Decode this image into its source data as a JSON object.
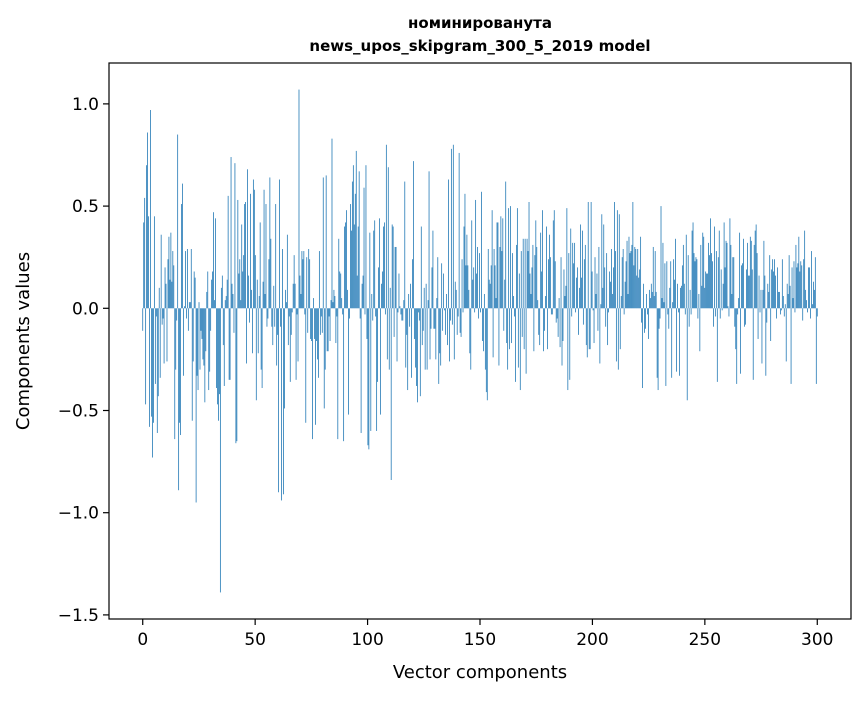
{
  "chart_data": {
    "type": "bar",
    "title_lines": [
      "номинированута",
      "news_upos_skipgram_300_5_2019 model"
    ],
    "xlabel": "Vector components",
    "ylabel": "Components values",
    "xlim": [
      -15,
      315
    ],
    "ylim": [
      -1.52,
      1.2
    ],
    "x_ticks": [
      0,
      50,
      100,
      150,
      200,
      250,
      300
    ],
    "x_tick_labels": [
      "0",
      "50",
      "100",
      "150",
      "200",
      "250",
      "300"
    ],
    "y_ticks": [
      -1.5,
      -1.0,
      -0.5,
      0.0,
      0.5,
      1.0
    ],
    "y_tick_labels": [
      "−1.5",
      "−1.0",
      "−0.5",
      "0.0",
      "0.5",
      "1.0"
    ],
    "bar_color": "#1f77b4",
    "bar_width": 0.8,
    "grid": false,
    "values": [
      -0.11,
      0.42,
      0.54,
      -0.47,
      0.7,
      0.86,
      0.45,
      -0.58,
      0.97,
      -0.53,
      -0.73,
      -0.56,
      0.45,
      -0.37,
      -0.04,
      -0.61,
      -0.43,
      0.1,
      -0.34,
      0.36,
      -0.08,
      -0.05,
      -0.27,
      0.2,
      0.12,
      -0.26,
      0.24,
      0.35,
      0.14,
      0.37,
      0.13,
      0.28,
      0.21,
      -0.64,
      -0.3,
      -0.06,
      0.85,
      -0.89,
      -0.56,
      -0.62,
      0.51,
      0.61,
      -0.33,
      0.01,
      0.28,
      -0.05,
      0.29,
      -0.11,
      0.03,
      0.03,
      0.29,
      -0.55,
      -0.26,
      0.18,
      0.15,
      -0.95,
      -0.33,
      -0.4,
      0.03,
      -0.3,
      -0.11,
      -0.15,
      -0.25,
      -0.28,
      -0.46,
      -0.21,
      0.08,
      0.18,
      -0.4,
      -0.31,
      -0.11,
      0.14,
      0.18,
      0.47,
      0.04,
      0.44,
      -0.39,
      -0.47,
      -0.55,
      -0.42,
      -1.39,
      0.1,
      0.16,
      -0.18,
      -0.38,
      0.04,
      0.06,
      0.14,
      0.55,
      -0.35,
      -0.35,
      0.74,
      0.12,
      0.07,
      -0.12,
      0.71,
      -0.66,
      -0.65,
      0.53,
      0.17,
      0.24,
      0.04,
      0.41,
      0.18,
      0.26,
      0.51,
      0.52,
      -0.27,
      0.68,
      0.16,
      -0.07,
      0.56,
      0.09,
      -0.22,
      0.63,
      0.58,
      0.26,
      -0.45,
      0.14,
      -0.22,
      0.06,
      0.42,
      -0.3,
      -0.39,
      0.13,
      0.58,
      0.07,
      0.51,
      -0.09,
      -0.05,
      0.24,
      0.64,
      0.34,
      -0.09,
      -0.18,
      0.11,
      -0.09,
      0.51,
      -0.28,
      -0.13,
      -0.9,
      0.63,
      -0.09,
      -0.94,
      0.29,
      -0.91,
      -0.49,
      0.09,
      0.03,
      0.36,
      -0.18,
      -0.04,
      -0.36,
      -0.13,
      -0.02,
      0.12,
      0.26,
      0.12,
      -0.35,
      -0.03,
      -0.26,
      1.07,
      0.16,
      0.07,
      0.28,
      0.24,
      0.28,
      -0.03,
      -0.56,
      0.25,
      -0.12,
      0.29,
      0.24,
      -0.15,
      -0.16,
      -0.64,
      0.05,
      -0.15,
      -0.57,
      -0.16,
      -0.25,
      -0.34,
      0.28,
      -0.13,
      -0.04,
      -0.12,
      0.64,
      -0.49,
      -0.3,
      0.65,
      -0.21,
      -0.21,
      -0.04,
      -0.16,
      0.04,
      0.83,
      0.03,
      0.09,
      0.06,
      -0.17,
      -0.04,
      -0.64,
      0.34,
      0.18,
      0.17,
      0.05,
      -0.03,
      -0.65,
      0.4,
      0.42,
      0.48,
      0.09,
      -0.52,
      -0.05,
      0.51,
      0.38,
      0.62,
      0.7,
      0.41,
      0.56,
      0.77,
      0.16,
      0.4,
      0.67,
      -0.05,
      -0.61,
      0.12,
      0.16,
      0.59,
      -0.03,
      0.7,
      -0.15,
      -0.67,
      -0.69,
      0.37,
      -0.6,
      0.07,
      -0.06,
      0.38,
      0.43,
      -0.04,
      -0.6,
      -0.36,
      0.2,
      0.44,
      -0.52,
      0.12,
      0.18,
      0.4,
      0.42,
      -0.03,
      0.8,
      -0.25,
      0.69,
      -0.3,
      0.1,
      -0.84,
      0.41,
      0.4,
      -0.14,
      0.3,
      0.3,
      -0.26,
      -0.02,
      0.17,
      0.01,
      -0.03,
      -0.06,
      -0.06,
      0.04,
      0.62,
      -0.29,
      -0.13,
      -0.4,
      0.07,
      -0.09,
      0.12,
      -0.34,
      0.24,
      0.72,
      -0.15,
      -0.29,
      -0.38,
      -0.46,
      -0.02,
      -0.06,
      -0.43,
      0.4,
      -0.18,
      -0.11,
      0.1,
      -0.3,
      0.12,
      -0.3,
      0.04,
      0.67,
      -0.25,
      -0.1,
      0.2,
      0.38,
      -0.1,
      -0.1,
      -0.25,
      0.05,
      0.25,
      -0.37,
      -0.22,
      -0.28,
      0.22,
      -0.11,
      0.17,
      -0.01,
      -0.13,
      0.07,
      -0.18,
      0.63,
      -0.26,
      -0.06,
      0.78,
      -0.08,
      0.8,
      -0.25,
      0.13,
      0.09,
      -0.13,
      -0.04,
      0.76,
      -0.12,
      -0.14,
      0.24,
      -0.02,
      0.4,
      0.56,
      0.21,
      0.36,
      0.21,
      0.09,
      -0.22,
      -0.3,
      0.43,
      0.14,
      0.2,
      -0.02,
      0.53,
      0.17,
      0.3,
      -0.05,
      0.27,
      -0.02,
      0.57,
      -0.16,
      -0.21,
      0.07,
      -0.3,
      -0.41,
      -0.45,
      0.29,
      0.14,
      0.12,
      0.21,
      0.48,
      -0.24,
      0.29,
      0.21,
      0.05,
      0.42,
      0.42,
      -0.28,
      0.3,
      0.45,
      0.28,
      0.44,
      -0.11,
      0.14,
      0.62,
      -0.17,
      -0.3,
      0.49,
      -0.2,
      0.5,
      -0.17,
      0.27,
      0.06,
      -0.04,
      -0.36,
      0.31,
      0.49,
      -0.29,
      0.17,
      -0.4,
      0.28,
      -0.14,
      0.34,
      -0.2,
      0.34,
      -0.32,
      0.34,
      0.28,
      0.52,
      0.17,
      0.07,
      0.2,
      0.31,
      -0.21,
      0.26,
      0.43,
      0.3,
      0.04,
      -0.13,
      -0.18,
      0.37,
      0.18,
      0.48,
      -0.21,
      -0.11,
      0.06,
      0.4,
      -0.2,
      0.24,
      0.36,
      0.25,
      -0.03,
      -0.03,
      0.43,
      0.48,
      0.23,
      -0.07,
      -0.05,
      -0.14,
      0.05,
      -0.19,
      0.25,
      -0.28,
      -0.16,
      0.19,
      0.06,
      0.11,
      0.49,
      -0.4,
      0.27,
      -0.35,
      0.39,
      -0.04,
      0.32,
      0.22,
      0.32,
      -0.02,
      0.15,
      0.2,
      -0.13,
      0.1,
      0.41,
      0.15,
      0.38,
      -0.08,
      0.24,
      0.31,
      -0.18,
      -0.24,
      0.52,
      -0.2,
      -0.2,
      0.52,
      0.18,
      -0.01,
      -0.17,
      0.25,
      0.07,
      0.17,
      -0.11,
      0.3,
      -0.27,
      0.02,
      0.46,
      0.1,
      0.41,
      0.2,
      -0.09,
      0.27,
      -0.18,
      -0.02,
      0.18,
      0.13,
      0.29,
      0.07,
      0.2,
      0.52,
      0.28,
      -0.26,
      0.48,
      -0.3,
      0.46,
      -0.2,
      0.06,
      0.25,
      0.29,
      -0.03,
      0.13,
      0.23,
      0.33,
      0.07,
      0.35,
      0.27,
      0.28,
      0.31,
      0.52,
      0.21,
      0.3,
      0.29,
      0.16,
      0.29,
      0.15,
      0.19,
      0.35,
      -0.07,
      -0.39,
      0.12,
      -0.12,
      -0.1,
      0.07,
      -0.03,
      -0.15,
      0.09,
      0.05,
      0.12,
      0.08,
      0.3,
      0.06,
      0.28,
      0.08,
      -0.34,
      -0.4,
      -0.1,
      -0.05,
      0.5,
      0.05,
      0.32,
      0.03,
      0.22,
      -0.38,
      0.23,
      -0.03,
      -0.1,
      0.1,
      0.23,
      -0.34,
      0.03,
      0.24,
      0.14,
      0.34,
      -0.31,
      0.12,
      -0.02,
      -0.33,
      0.1,
      0.11,
      0.21,
      0.31,
      0.12,
      -0.03,
      0.36,
      -0.45,
      0.26,
      -0.09,
      0.09,
      -0.03,
      0.38,
      0.42,
      0.27,
      0.23,
      0.25,
      0.24,
      -0.05,
      0.07,
      -0.21,
      0.31,
      0.11,
      0.37,
      0.35,
      0.1,
      0.18,
      0.17,
      0.17,
      0.32,
      0.26,
      0.44,
      0.27,
      0.23,
      -0.09,
      0.4,
      -0.04,
      0.28,
      -0.36,
      0.25,
      0.38,
      -0.05,
      0.19,
      -0.01,
      0.12,
      0.42,
      0.2,
      0.33,
      0.32,
      0.01,
      -0.04,
      0.44,
      0.31,
      0.07,
      0.25,
      0.25,
      -0.09,
      -0.2,
      -0.37,
      -0.03,
      0.05,
      0.37,
      -0.32,
      0.21,
      0.22,
      0.34,
      -0.09,
      -0.08,
      0.19,
      0.32,
      0.16,
      0.16,
      0.35,
      0.33,
      0.19,
      -0.35,
      0.31,
      0.38,
      0.41,
      0.27,
      -0.15,
      0.16,
      -0.02,
      0.09,
      -0.27,
      0.09,
      0.33,
      0.16,
      -0.33,
      -0.07,
      0.12,
      0.08,
      0.26,
      -0.16,
      0.19,
      0.24,
      0.18,
      0.24,
      0.16,
      -0.05,
      0.2,
      0.08,
      0.08,
      -0.03,
      -0.01,
      0.24,
      0.06,
      -0.04,
      0.02,
      -0.26,
      0.12,
      0.07,
      0.26,
      0.11,
      -0.37,
      0.2,
      0.05,
      0.23,
      -0.02,
      0.31,
      0.2,
      0.22,
      0.35,
      0.18,
      0.23,
      0.21,
      -0.06,
      0.24,
      0.38,
      0.09,
      0.04,
      -0.02,
      0.2,
      0.2,
      -0.05,
      0.28,
      0.02,
      0.13,
      0.09,
      0.25,
      -0.37,
      -0.04
    ]
  }
}
